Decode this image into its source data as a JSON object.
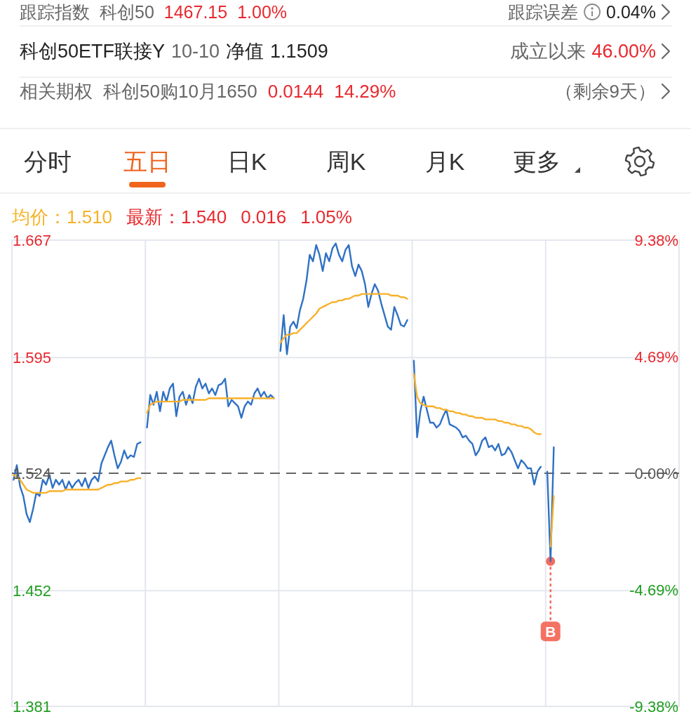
{
  "chart_data": [
    {
      "type": "other",
      "annotations": [
        "跟踪指数",
        "科创50",
        "1467.15",
        "1.00%",
        "跟踪误差",
        "0.04%",
        "科创50ETF联接Y",
        "10-10",
        "净值",
        "1.1509",
        "成立以来",
        "46.00%",
        "相关期权",
        "科创50购10月1650",
        "0.0144",
        "14.29%",
        "（剩余9天）",
        "分时",
        "五日",
        "日K",
        "周K",
        "月K",
        "更多",
        "均价：1.510",
        "最新：1.540",
        "0.016",
        "1.05%"
      ]
    },
    {
      "type": "line",
      "categories": [
        null,
        null,
        null,
        null,
        null,
        null,
        null,
        null,
        null,
        null,
        null,
        null,
        null,
        null,
        null,
        null,
        null,
        null,
        null,
        null,
        null,
        null,
        null,
        null,
        null,
        null,
        null,
        null,
        null,
        null,
        null,
        null,
        null,
        null,
        null,
        null,
        null,
        null,
        null,
        null,
        null,
        null,
        null,
        null,
        null,
        null,
        null,
        null,
        null,
        null,
        null,
        null,
        null,
        null,
        null,
        null,
        null,
        null,
        null,
        null,
        null,
        null,
        null,
        null,
        null,
        null,
        null,
        null,
        null,
        null,
        null,
        null,
        null,
        null,
        null,
        null,
        null,
        null,
        null,
        null,
        null,
        null,
        null,
        null,
        null,
        null,
        null,
        null,
        null,
        null,
        null,
        null,
        null,
        null,
        null,
        null,
        null,
        null,
        null,
        null,
        null,
        null,
        null,
        null,
        null,
        null,
        null,
        null,
        null,
        null,
        null,
        null,
        null,
        null,
        null,
        null,
        null,
        null,
        null,
        null,
        null,
        null,
        null,
        null,
        null,
        null,
        null,
        null,
        null,
        null,
        null,
        null,
        null,
        null,
        null,
        null,
        null,
        null,
        null,
        null,
        null,
        null,
        null,
        null,
        null,
        null,
        null,
        null,
        null,
        null,
        null,
        null,
        null,
        null,
        null,
        null,
        null,
        null,
        null,
        null,
        null,
        null,
        null,
        null,
        null,
        null,
        null,
        null,
        null,
        null,
        null,
        null,
        null,
        null,
        null,
        null,
        null,
        null,
        null,
        null,
        null,
        null,
        null,
        null,
        null,
        null,
        null,
        null,
        null,
        null,
        null,
        null,
        null,
        null,
        null,
        null,
        null,
        null,
        null,
        null,
        null,
        null,
        null,
        null,
        null
      ],
      "ylim": [
        1.381,
        1.667
      ],
      "yticks": [
        1.381,
        1.452,
        1.524,
        1.595,
        1.667
      ],
      "y2lim": [
        -9.38,
        9.38
      ],
      "y2ticks": [
        {
          "value": -9.38,
          "label": "-9.38%"
        },
        {
          "value": -4.69,
          "label": "-4.69%"
        },
        {
          "value": 0,
          "label": "0.00%"
        },
        {
          "value": 4.69,
          "label": "4.69%"
        },
        {
          "value": 9.38,
          "label": "9.38%"
        }
      ],
      "grid": true,
      "ref_lines": [
        {
          "axis": "y",
          "value": 1.524,
          "color": "#666666",
          "line_style": "dashed"
        }
      ],
      "series": [
        {
          "color": "#2f71c4",
          "values": [
            1.52,
            1.529,
            1.516,
            1.51,
            1.499,
            1.494,
            1.502,
            1.512,
            1.51,
            1.52,
            1.517,
            1.523,
            1.515,
            1.52,
            1.517,
            1.52,
            1.514,
            1.519,
            1.515,
            1.518,
            1.52,
            1.516,
            1.521,
            1.515,
            1.52,
            1.522,
            1.519,
            1.53,
            1.535,
            1.54,
            1.544,
            1.535,
            1.527,
            1.531,
            1.538,
            1.533,
            1.535,
            1.534,
            1.542,
            1.543,
            null,
            1.552,
            1.572,
            1.566,
            1.574,
            1.562,
            1.574,
            1.568,
            1.576,
            1.579,
            1.559,
            1.571,
            1.574,
            1.566,
            1.572,
            1.567,
            1.577,
            1.582,
            1.576,
            1.579,
            1.573,
            1.576,
            1.572,
            1.578,
            1.579,
            1.582,
            1.565,
            1.569,
            1.567,
            1.565,
            1.558,
            1.565,
            1.568,
            1.566,
            1.573,
            1.576,
            1.571,
            1.574,
            1.57,
            1.572,
            1.57,
            null,
            1.599,
            1.621,
            1.597,
            1.614,
            1.617,
            1.613,
            1.624,
            1.631,
            1.642,
            1.658,
            1.654,
            1.664,
            1.658,
            1.648,
            1.659,
            1.654,
            1.662,
            1.665,
            1.658,
            1.654,
            1.661,
            1.664,
            1.651,
            1.645,
            1.652,
            1.648,
            1.64,
            1.626,
            1.634,
            1.64,
            1.636,
            1.628,
            1.621,
            1.614,
            1.612,
            1.626,
            1.621,
            1.615,
            1.614,
            1.618,
            null,
            1.593,
            1.546,
            1.562,
            1.571,
            1.563,
            1.555,
            1.555,
            1.552,
            1.554,
            1.559,
            1.563,
            1.554,
            1.553,
            1.552,
            1.55,
            1.546,
            1.547,
            1.544,
            1.542,
            1.535,
            1.538,
            1.544,
            1.546,
            1.54,
            1.541,
            1.538,
            1.542,
            1.535,
            1.536,
            1.54,
            1.537,
            1.532,
            1.527,
            1.532,
            1.53,
            1.527,
            1.527,
            1.517,
            1.525,
            1.528,
            null,
            1.525,
            1.47,
            1.54,
            null,
            null,
            null,
            null,
            null,
            null,
            null,
            null,
            null,
            null,
            null,
            null,
            null,
            null,
            null,
            null,
            null,
            null,
            null,
            null,
            null,
            null,
            null,
            null,
            null,
            null,
            null,
            null,
            null,
            null,
            null,
            null,
            null,
            null,
            null,
            null,
            null,
            null
          ]
        },
        {
          "color": "#f7b12b",
          "values": [
            1.523,
            1.522,
            1.52,
            1.517,
            1.514,
            1.513,
            1.512,
            1.512,
            1.512,
            1.512,
            1.512,
            1.513,
            1.513,
            1.513,
            1.513,
            1.513,
            1.514,
            1.514,
            1.514,
            1.514,
            1.514,
            1.514,
            1.514,
            1.514,
            1.514,
            1.514,
            1.514,
            1.515,
            1.516,
            1.517,
            1.517,
            1.518,
            1.518,
            1.519,
            1.519,
            1.519,
            1.52,
            1.52,
            1.521,
            1.521,
            null,
            1.561,
            1.566,
            1.567,
            1.568,
            1.568,
            1.568,
            1.568,
            1.568,
            1.568,
            1.568,
            1.568,
            1.569,
            1.569,
            1.569,
            1.569,
            1.569,
            1.569,
            1.569,
            1.569,
            1.57,
            1.57,
            1.57,
            1.57,
            1.57,
            1.57,
            1.57,
            1.57,
            1.57,
            1.57,
            1.57,
            1.57,
            1.57,
            1.57,
            1.57,
            1.57,
            1.57,
            1.57,
            1.57,
            1.57,
            1.57,
            null,
            1.604,
            1.607,
            1.609,
            1.609,
            1.61,
            1.61,
            1.612,
            1.614,
            1.616,
            1.618,
            1.62,
            1.622,
            1.625,
            1.626,
            1.627,
            1.628,
            1.629,
            1.629,
            1.63,
            1.63,
            1.631,
            1.631,
            1.632,
            1.633,
            1.633,
            1.634,
            1.634,
            1.634,
            1.634,
            1.634,
            1.634,
            1.634,
            1.634,
            1.634,
            1.633,
            1.633,
            1.633,
            1.632,
            1.632,
            1.631,
            null,
            1.585,
            1.571,
            1.567,
            1.566,
            1.565,
            1.565,
            1.565,
            1.564,
            1.564,
            1.563,
            1.563,
            1.562,
            1.562,
            1.561,
            1.561,
            1.56,
            1.56,
            1.559,
            1.559,
            1.558,
            1.558,
            1.558,
            1.557,
            1.557,
            1.557,
            1.557,
            1.556,
            1.556,
            1.555,
            1.555,
            1.554,
            1.554,
            1.553,
            1.553,
            1.552,
            1.552,
            1.551,
            1.549,
            1.548,
            1.548,
            null,
            null,
            1.479,
            1.51,
            null,
            null,
            null,
            null,
            null,
            null,
            null,
            null,
            null,
            null,
            null,
            null,
            null,
            null,
            null,
            null,
            null,
            null,
            null,
            null,
            null,
            null,
            null,
            null,
            null,
            null,
            null,
            null,
            null,
            null,
            null,
            null,
            null,
            null,
            null,
            null,
            null,
            null
          ]
        }
      ],
      "annotations": [
        "B"
      ]
    }
  ]
}
